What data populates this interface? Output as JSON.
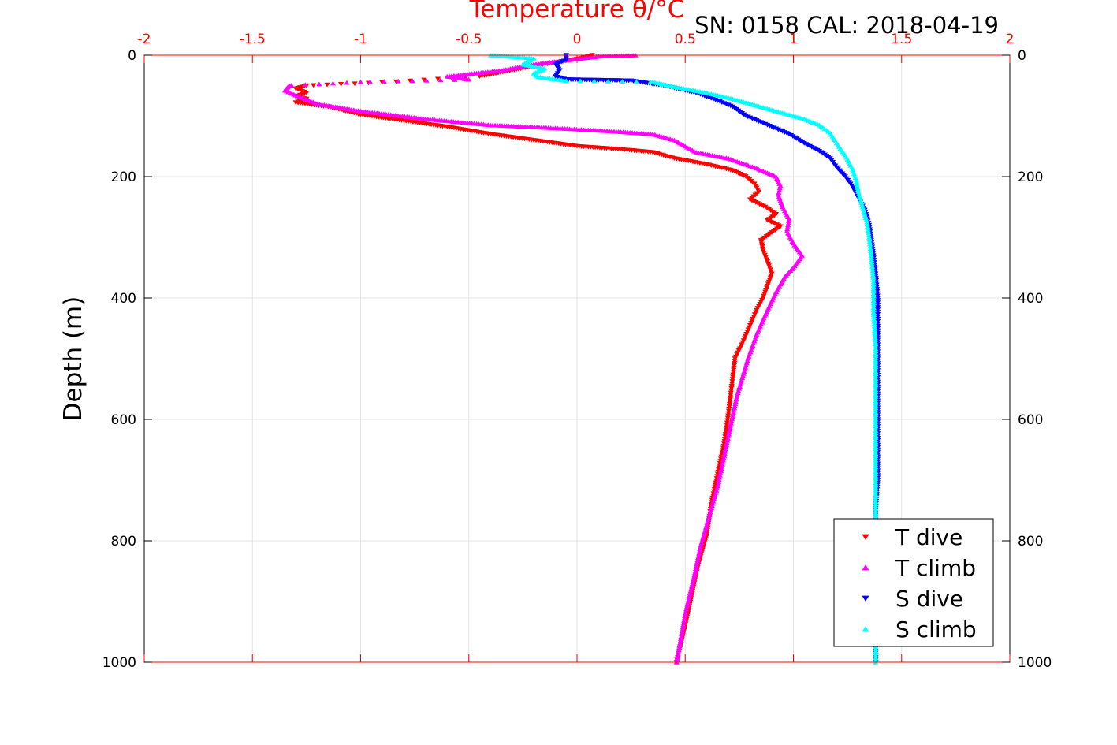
{
  "chart_data": {
    "type": "scatter",
    "title": "Temperature θ/°C",
    "subtitle": "SN: 0158  CAL: 2018-04-19",
    "xlabel": "Temperature θ/°C",
    "ylabel": "Depth (m)",
    "xlim": [
      -2,
      2
    ],
    "ylim": [
      0,
      1000
    ],
    "y_reversed": true,
    "grid": true,
    "x_ticks": [
      -2,
      -1.5,
      -1,
      -0.5,
      0,
      0.5,
      1,
      1.5,
      2
    ],
    "x_tick_labels": [
      "-2",
      "-1.5",
      "-1",
      "-0.5",
      "0",
      "0.5",
      "1",
      "1.5",
      "2"
    ],
    "y_ticks": [
      0,
      200,
      400,
      600,
      800,
      1000
    ],
    "y_tick_labels": [
      "0",
      "200",
      "400",
      "600",
      "800",
      "1000"
    ],
    "legend_position": "bottom-right",
    "series": [
      {
        "name": "T dive",
        "color": "#ff0000",
        "marker": "triangle-down",
        "points": [
          [
            0.07,
            0
          ],
          [
            0.02,
            5
          ],
          [
            -0.2,
            18
          ],
          [
            -0.3,
            25
          ],
          [
            -0.45,
            35
          ],
          [
            -0.9,
            45
          ],
          [
            -1.25,
            50
          ],
          [
            -1.3,
            55
          ],
          [
            -1.25,
            62
          ],
          [
            -1.3,
            68
          ],
          [
            -1.25,
            72
          ],
          [
            -1.3,
            78
          ],
          [
            -1.15,
            85
          ],
          [
            -1.0,
            98
          ],
          [
            -0.8,
            108
          ],
          [
            -0.6,
            118
          ],
          [
            -0.4,
            130
          ],
          [
            -0.2,
            140
          ],
          [
            0.0,
            150
          ],
          [
            0.2,
            155
          ],
          [
            0.35,
            160
          ],
          [
            0.45,
            170
          ],
          [
            0.6,
            180
          ],
          [
            0.72,
            190
          ],
          [
            0.78,
            200
          ],
          [
            0.82,
            212
          ],
          [
            0.84,
            225
          ],
          [
            0.8,
            238
          ],
          [
            0.87,
            250
          ],
          [
            0.92,
            262
          ],
          [
            0.88,
            272
          ],
          [
            0.94,
            282
          ],
          [
            0.9,
            292
          ],
          [
            0.85,
            305
          ],
          [
            0.86,
            322
          ],
          [
            0.88,
            340
          ],
          [
            0.9,
            360
          ],
          [
            0.88,
            380
          ],
          [
            0.86,
            400
          ],
          [
            0.83,
            420
          ],
          [
            0.8,
            445
          ],
          [
            0.77,
            470
          ],
          [
            0.73,
            500
          ],
          [
            0.72,
            530
          ],
          [
            0.71,
            560
          ],
          [
            0.7,
            590
          ],
          [
            0.68,
            640
          ],
          [
            0.65,
            690
          ],
          [
            0.62,
            740
          ],
          [
            0.6,
            790
          ],
          [
            0.56,
            840
          ],
          [
            0.53,
            890
          ],
          [
            0.5,
            940
          ],
          [
            0.46,
            1000
          ]
        ]
      },
      {
        "name": "T climb",
        "color": "#ff00ff",
        "marker": "triangle-up",
        "points": [
          [
            0.27,
            0
          ],
          [
            0.1,
            2
          ],
          [
            -0.2,
            15
          ],
          [
            -0.35,
            25
          ],
          [
            -0.6,
            35
          ],
          [
            -0.5,
            40
          ],
          [
            -1.0,
            44
          ],
          [
            -1.33,
            50
          ],
          [
            -1.35,
            58
          ],
          [
            -1.3,
            66
          ],
          [
            -1.2,
            80
          ],
          [
            -1.0,
            92
          ],
          [
            -0.7,
            105
          ],
          [
            -0.4,
            115
          ],
          [
            -0.1,
            120
          ],
          [
            0.15,
            125
          ],
          [
            0.35,
            130
          ],
          [
            0.45,
            140
          ],
          [
            0.5,
            150
          ],
          [
            0.55,
            160
          ],
          [
            0.7,
            170
          ],
          [
            0.82,
            185
          ],
          [
            0.92,
            200
          ],
          [
            0.94,
            215
          ],
          [
            0.93,
            230
          ],
          [
            0.95,
            250
          ],
          [
            0.98,
            270
          ],
          [
            0.97,
            290
          ],
          [
            1.0,
            310
          ],
          [
            1.04,
            330
          ],
          [
            1.0,
            350
          ],
          [
            0.96,
            365
          ],
          [
            0.92,
            390
          ],
          [
            0.88,
            420
          ],
          [
            0.83,
            460
          ],
          [
            0.79,
            500
          ],
          [
            0.74,
            560
          ],
          [
            0.71,
            610
          ],
          [
            0.68,
            660
          ],
          [
            0.65,
            710
          ],
          [
            0.61,
            760
          ],
          [
            0.57,
            810
          ],
          [
            0.54,
            860
          ],
          [
            0.5,
            920
          ],
          [
            0.47,
            980
          ],
          [
            0.46,
            1000
          ]
        ]
      },
      {
        "name": "S dive",
        "color": "#0000ff",
        "marker": "triangle-down",
        "points": [
          [
            -0.05,
            0
          ],
          [
            -0.05,
            8
          ],
          [
            -0.1,
            15
          ],
          [
            -0.08,
            25
          ],
          [
            -0.1,
            35
          ],
          [
            -0.05,
            40
          ],
          [
            0.25,
            42
          ],
          [
            0.4,
            50
          ],
          [
            0.55,
            62
          ],
          [
            0.65,
            75
          ],
          [
            0.72,
            85
          ],
          [
            0.78,
            100
          ],
          [
            0.88,
            115
          ],
          [
            0.98,
            130
          ],
          [
            1.05,
            145
          ],
          [
            1.12,
            158
          ],
          [
            1.17,
            170
          ],
          [
            1.2,
            185
          ],
          [
            1.24,
            200
          ],
          [
            1.27,
            215
          ],
          [
            1.3,
            235
          ],
          [
            1.33,
            255
          ],
          [
            1.35,
            280
          ],
          [
            1.36,
            305
          ],
          [
            1.37,
            330
          ],
          [
            1.38,
            360
          ],
          [
            1.39,
            400
          ],
          [
            1.39,
            450
          ],
          [
            1.39,
            500
          ],
          [
            1.39,
            550
          ],
          [
            1.39,
            600
          ],
          [
            1.39,
            650
          ],
          [
            1.39,
            700
          ],
          [
            1.38,
            750
          ],
          [
            1.38,
            800
          ],
          [
            1.38,
            850
          ],
          [
            1.38,
            900
          ],
          [
            1.38,
            950
          ],
          [
            1.38,
            1000
          ]
        ]
      },
      {
        "name": "S climb",
        "color": "#00ffff",
        "marker": "triangle-up",
        "points": [
          [
            -0.4,
            0
          ],
          [
            -0.2,
            5
          ],
          [
            -0.25,
            15
          ],
          [
            -0.15,
            22
          ],
          [
            -0.2,
            30
          ],
          [
            -0.18,
            36
          ],
          [
            -0.05,
            42
          ],
          [
            0.35,
            44
          ],
          [
            0.45,
            52
          ],
          [
            0.6,
            62
          ],
          [
            0.72,
            72
          ],
          [
            0.82,
            82
          ],
          [
            0.95,
            95
          ],
          [
            1.05,
            105
          ],
          [
            1.12,
            115
          ],
          [
            1.17,
            128
          ],
          [
            1.2,
            145
          ],
          [
            1.24,
            165
          ],
          [
            1.27,
            185
          ],
          [
            1.29,
            205
          ],
          [
            1.3,
            225
          ],
          [
            1.32,
            250
          ],
          [
            1.34,
            275
          ],
          [
            1.35,
            300
          ],
          [
            1.36,
            330
          ],
          [
            1.37,
            370
          ],
          [
            1.37,
            420
          ],
          [
            1.38,
            480
          ],
          [
            1.38,
            540
          ],
          [
            1.38,
            600
          ],
          [
            1.38,
            660
          ],
          [
            1.38,
            720
          ],
          [
            1.38,
            780
          ],
          [
            1.38,
            840
          ],
          [
            1.38,
            900
          ],
          [
            1.38,
            960
          ],
          [
            1.38,
            1000
          ]
        ]
      }
    ]
  }
}
